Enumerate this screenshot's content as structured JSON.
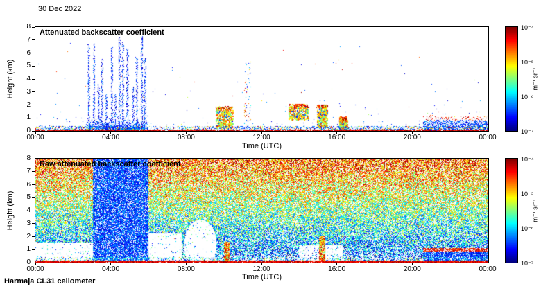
{
  "header": {
    "date_label": "30 Dec 2022"
  },
  "footer": {
    "instrument_label": "Harmaja CL31 ceilometer"
  },
  "colors": {
    "background": "#ffffff",
    "axis": "#000000",
    "colormap": "jet"
  },
  "chart_data": [
    {
      "type": "heatmap",
      "title": "Attenuated backscatter coefficient",
      "xlabel": "Time (UTC)",
      "ylabel": "Height (km)",
      "x_ticks": [
        "00:00",
        "04:00",
        "08:00",
        "12:00",
        "16:00",
        "20:00",
        "00:00"
      ],
      "x_range_hours": [
        0,
        24
      ],
      "y_ticks": [
        0,
        1,
        2,
        3,
        4,
        5,
        6,
        7,
        8
      ],
      "y_range_km": [
        0,
        8
      ],
      "grid": false,
      "colorbar": {
        "label": "m⁻¹ sr⁻¹",
        "ticks": [
          "10⁻⁴",
          "10⁻⁵",
          "10⁻⁶",
          "10⁻⁷"
        ],
        "scale": "log",
        "range_min": 1e-07,
        "range_max": 0.0001,
        "colormap": "jet"
      },
      "features": [
        {
          "type": "sparse_dots",
          "count": 520
        },
        {
          "type": "noise_spikes",
          "t": [
            2.7,
            5.95
          ],
          "h_max": 7.5,
          "count": 14
        },
        {
          "type": "plume",
          "t": [
            9.55,
            10.45
          ],
          "h": [
            0.25,
            1.9
          ]
        },
        {
          "type": "plume",
          "t": [
            13.4,
            14.45
          ],
          "h": [
            0.9,
            2.1
          ]
        },
        {
          "type": "plume",
          "t": [
            14.9,
            15.45
          ],
          "h": [
            0.3,
            2.05
          ]
        },
        {
          "type": "plume",
          "t": [
            16.1,
            16.5
          ],
          "h": [
            0.2,
            1.1
          ]
        },
        {
          "type": "thin_column",
          "t": [
            11.05,
            11.4
          ],
          "h": [
            0.4,
            5.6
          ]
        },
        {
          "type": "cloud_band",
          "t": [
            20.55,
            24
          ],
          "h": [
            0,
            1.05
          ]
        },
        {
          "type": "surface_layer",
          "t": [
            0,
            24
          ],
          "h": [
            0,
            0.4
          ]
        }
      ]
    },
    {
      "type": "heatmap",
      "title": "Raw attenuated backscatter coefficient",
      "xlabel": "Time (UTC)",
      "ylabel": "Height (km)",
      "x_ticks": [
        "00:00",
        "04:00",
        "08:00",
        "12:00",
        "16:00",
        "20:00",
        "00:00"
      ],
      "x_range_hours": [
        0,
        24
      ],
      "y_ticks": [
        0,
        1,
        2,
        3,
        4,
        5,
        6,
        7,
        8
      ],
      "y_range_km": [
        0,
        8
      ],
      "grid": false,
      "colorbar": {
        "label": "m⁻¹ sr⁻¹",
        "ticks": [
          "10⁻⁴",
          "10⁻⁵",
          "10⁻⁶",
          "10⁻⁷"
        ],
        "scale": "log",
        "range_min": 1e-07,
        "range_max": 0.0001,
        "colormap": "jet"
      },
      "features": [
        {
          "type": "noise_field",
          "white_fraction": 0.3
        },
        {
          "type": "white_gap",
          "shape": "rect",
          "t": [
            0,
            3.05
          ],
          "h": [
            0,
            1.55
          ]
        },
        {
          "type": "white_gap",
          "shape": "rect",
          "t": [
            5.95,
            7.75
          ],
          "h": [
            0,
            2.25
          ]
        },
        {
          "type": "white_gap",
          "shape": "ellipse",
          "t_center": 8.75,
          "t_radius": 0.85,
          "h_center": 1.4,
          "h_radius": 1.9
        },
        {
          "type": "white_gap",
          "shape": "rect",
          "t": [
            13.95,
            16.3
          ],
          "h": [
            0,
            1.35
          ],
          "opacity": 0.9
        },
        {
          "type": "dense_blue_region",
          "t": [
            3.05,
            6.0
          ],
          "h": [
            0,
            8
          ]
        },
        {
          "type": "colored_column",
          "t": [
            10.0,
            10.3
          ],
          "h": [
            0,
            1.6
          ]
        },
        {
          "type": "colored_column",
          "t": [
            15.05,
            15.35
          ],
          "h": [
            0,
            2.0
          ]
        },
        {
          "type": "cloud_band",
          "t": [
            20.55,
            24
          ],
          "h": [
            0,
            1.05
          ]
        },
        {
          "type": "surface_layer",
          "t": [
            0,
            24
          ],
          "h": [
            0,
            0.45
          ]
        }
      ]
    }
  ]
}
